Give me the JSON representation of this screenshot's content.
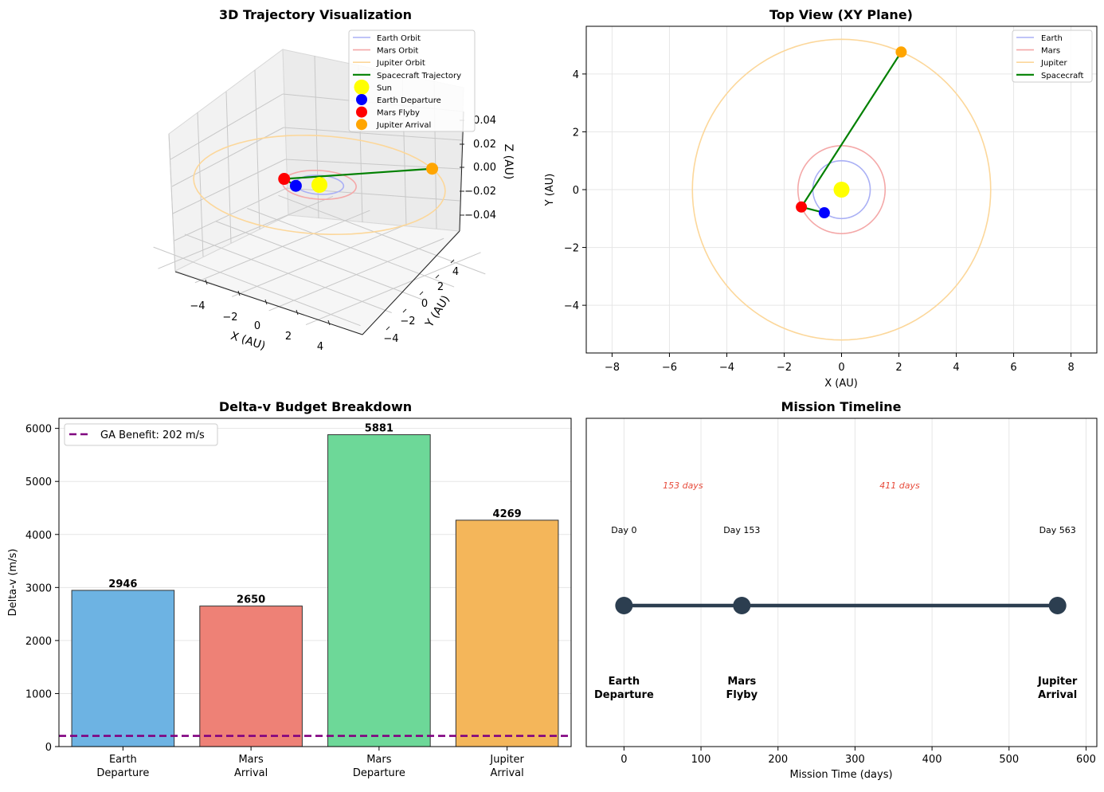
{
  "chart_data": [
    {
      "id": "trajectory3d",
      "type": "scatter",
      "title": "3D Trajectory Visualization",
      "xlabel": "X (AU)",
      "ylabel": "Y (AU)",
      "zlabel": "Z (AU)",
      "x_ticks": [
        "−4",
        "−2",
        "0",
        "2",
        "4"
      ],
      "y_ticks": [
        "−4",
        "−2",
        "0",
        "2",
        "4"
      ],
      "z_ticks": [
        "−0.04",
        "−0.02",
        "0.00",
        "0.02",
        "0.04"
      ],
      "orbits": [
        {
          "name": "Earth",
          "radius": 1.0,
          "color": "#aab0f5"
        },
        {
          "name": "Mars",
          "radius": 1.52,
          "color": "#f4a8a8"
        },
        {
          "name": "Jupiter",
          "radius": 5.2,
          "color": "#fcd79a"
        }
      ],
      "trajectory": [
        [
          -0.6,
          -0.8
        ],
        [
          -1.4,
          -0.6
        ],
        [
          2.08,
          4.76
        ]
      ],
      "points": [
        {
          "name": "Sun",
          "x": 0,
          "y": 0,
          "color": "#ffff00"
        },
        {
          "name": "Earth Departure",
          "x": -0.6,
          "y": -0.8,
          "color": "#0000ff"
        },
        {
          "name": "Mars Flyby",
          "x": -1.4,
          "y": -0.6,
          "color": "#ff0000"
        },
        {
          "name": "Jupiter Arrival",
          "x": 2.08,
          "y": 4.76,
          "color": "#ffa500"
        }
      ],
      "legend": [
        "Earth Orbit",
        "Mars Orbit",
        "Jupiter Orbit",
        "Spacecraft Trajectory",
        "Sun",
        "Earth Departure",
        "Mars Flyby",
        "Jupiter Arrival"
      ],
      "legend_position": "top-right"
    },
    {
      "id": "topview",
      "type": "line",
      "title": "Top View (XY Plane)",
      "xlabel": "X (AU)",
      "ylabel": "Y (AU)",
      "xlim": [
        -8.9,
        8.9
      ],
      "ylim": [
        -5.65,
        5.65
      ],
      "x_ticks": [
        {
          "v": -8,
          "l": "−8"
        },
        {
          "v": -6,
          "l": "−6"
        },
        {
          "v": -4,
          "l": "−4"
        },
        {
          "v": -2,
          "l": "−2"
        },
        {
          "v": 0,
          "l": "0"
        },
        {
          "v": 2,
          "l": "2"
        },
        {
          "v": 4,
          "l": "4"
        },
        {
          "v": 6,
          "l": "6"
        },
        {
          "v": 8,
          "l": "8"
        }
      ],
      "y_ticks": [
        {
          "v": -4,
          "l": "−4"
        },
        {
          "v": -2,
          "l": "−2"
        },
        {
          "v": 0,
          "l": "0"
        },
        {
          "v": 2,
          "l": "2"
        },
        {
          "v": 4,
          "l": "4"
        }
      ],
      "orbits": [
        {
          "name": "Earth",
          "radius": 1.0,
          "color": "#aab0f5"
        },
        {
          "name": "Mars",
          "radius": 1.52,
          "color": "#f4a8a8"
        },
        {
          "name": "Jupiter",
          "radius": 5.2,
          "color": "#fcd79a"
        }
      ],
      "trajectory": [
        [
          -0.6,
          -0.8
        ],
        [
          -1.4,
          -0.6
        ],
        [
          2.08,
          4.76
        ]
      ],
      "points": [
        {
          "name": "Sun",
          "x": 0,
          "y": 0,
          "color": "#ffff00"
        },
        {
          "name": "Earth",
          "x": -0.6,
          "y": -0.8,
          "color": "#0000ff"
        },
        {
          "name": "Mars",
          "x": -1.4,
          "y": -0.6,
          "color": "#ff0000"
        },
        {
          "name": "Jupiter",
          "x": 2.08,
          "y": 4.76,
          "color": "#ffa500"
        }
      ],
      "legend": [
        "Earth",
        "Mars",
        "Jupiter",
        "Spacecraft"
      ],
      "legend_position": "top-right",
      "grid": true
    },
    {
      "id": "deltav",
      "type": "bar",
      "title": "Delta-v Budget Breakdown",
      "ylabel": "Delta-v (m/s)",
      "categories": [
        [
          "Earth",
          "Departure"
        ],
        [
          "Mars",
          "Arrival"
        ],
        [
          "Mars",
          "Departure"
        ],
        [
          "Jupiter",
          "Arrival"
        ]
      ],
      "values": [
        2946,
        2650,
        5881,
        4269
      ],
      "colors": [
        "#6db3e3",
        "#ee8176",
        "#6dd898",
        "#f4b65a"
      ],
      "ylim": [
        0,
        6190
      ],
      "y_ticks": [
        0,
        1000,
        2000,
        3000,
        4000,
        5000,
        6000
      ],
      "hline": {
        "value": 202,
        "label": "GA Benefit: 202 m/s",
        "color": "#800080"
      },
      "legend_position": "top-left",
      "grid": true
    },
    {
      "id": "timeline",
      "type": "line",
      "title": "Mission Timeline",
      "xlabel": "Mission Time (days)",
      "xlim": [
        -49,
        614
      ],
      "x_ticks": [
        0,
        100,
        200,
        300,
        400,
        500,
        600
      ],
      "events": [
        {
          "day": 0,
          "day_label": "Day 0",
          "name": [
            "Earth",
            "Departure"
          ]
        },
        {
          "day": 153,
          "day_label": "Day 153",
          "name": [
            "Mars",
            "Flyby"
          ]
        },
        {
          "day": 563,
          "day_label": "Day 563",
          "name": [
            "Jupiter",
            "Arrival"
          ]
        }
      ],
      "durations": [
        {
          "mid": 76.5,
          "label": "153 days"
        },
        {
          "mid": 358,
          "label": "411 days"
        }
      ],
      "grid": true
    }
  ]
}
